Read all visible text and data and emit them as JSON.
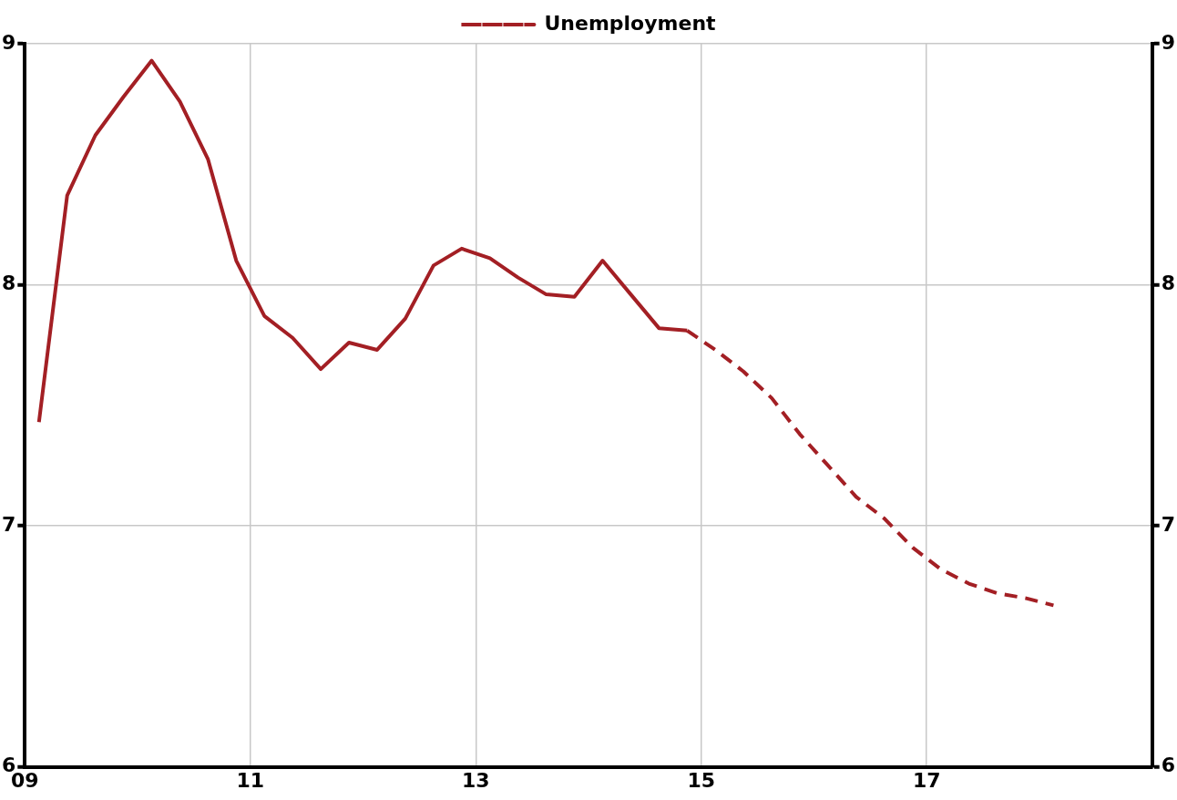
{
  "chart_data": {
    "type": "line",
    "legend": "top",
    "grid": true,
    "xlim": [
      2009,
      2019
    ],
    "xticks": [
      {
        "value": 2009,
        "label": "09"
      },
      {
        "value": 2011,
        "label": "11"
      },
      {
        "value": 2013,
        "label": "13"
      },
      {
        "value": 2015,
        "label": "15"
      },
      {
        "value": 2017,
        "label": "17"
      }
    ],
    "ylim": [
      6,
      9
    ],
    "yticks": [
      6,
      7,
      8,
      9
    ],
    "y2lim": [
      6,
      9
    ],
    "y2ticks": [
      6,
      7,
      8,
      9
    ],
    "series": [
      {
        "color": "#a31f24",
        "line_style": "solid",
        "x": [
          2009.125,
          2009.375,
          2009.625,
          2009.875,
          2010.125,
          2010.375,
          2010.625,
          2010.875,
          2011.125,
          2011.375,
          2011.625,
          2011.875,
          2012.125,
          2012.375,
          2012.625,
          2012.875,
          2013.125,
          2013.375,
          2013.625,
          2013.875,
          2014.125,
          2014.375,
          2014.625,
          2014.875
        ],
        "values": [
          7.43,
          8.37,
          8.62,
          8.78,
          8.93,
          8.76,
          8.52,
          8.1,
          7.87,
          7.78,
          7.65,
          7.76,
          7.73,
          7.86,
          8.08,
          8.15,
          8.11,
          8.03,
          7.96,
          7.95,
          8.1,
          7.96,
          7.82,
          7.81
        ]
      },
      {
        "name": "Unemployment",
        "color": "#a31f24",
        "line_style": "dashed",
        "x": [
          2014.875,
          2015.125,
          2015.375,
          2015.625,
          2015.875,
          2016.125,
          2016.375,
          2016.625,
          2016.875,
          2017.125,
          2017.375,
          2017.625,
          2017.875,
          2018.125
        ],
        "values": [
          7.81,
          7.73,
          7.64,
          7.53,
          7.38,
          7.25,
          7.12,
          7.03,
          6.91,
          6.82,
          6.76,
          6.72,
          6.7,
          6.67
        ]
      }
    ]
  }
}
